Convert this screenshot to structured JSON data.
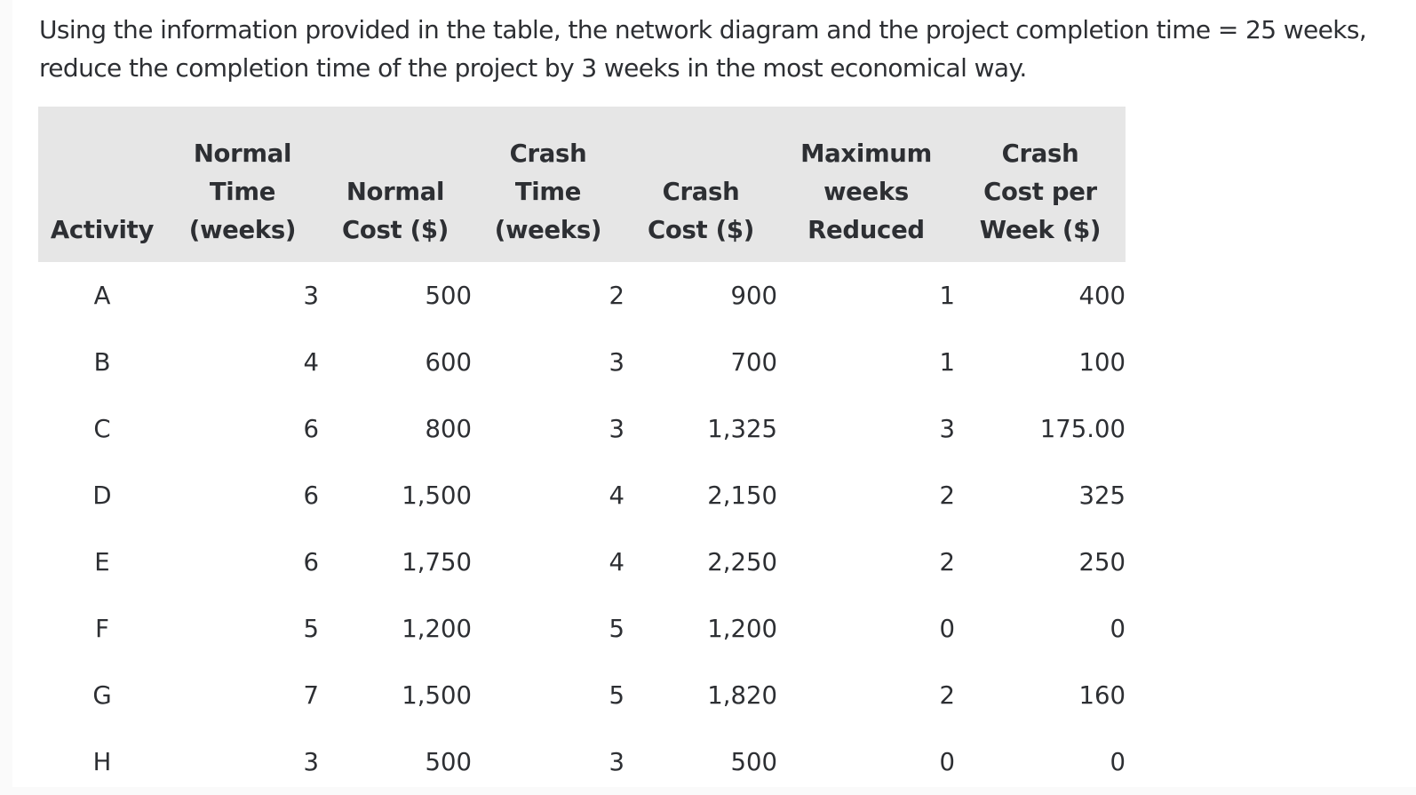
{
  "question": {
    "text": "Using the information provided in the table, the network diagram and the project completion time = 25 weeks, reduce the completion time of the project by 3 weeks in the most economical way."
  },
  "table": {
    "headers": [
      [
        "Activity"
      ],
      [
        "Normal",
        "Time",
        "(weeks)"
      ],
      [
        "Normal",
        "Cost ($)"
      ],
      [
        "Crash",
        "Time",
        "(weeks)"
      ],
      [
        "Crash",
        "Cost ($)"
      ],
      [
        "Maximum",
        "weeks",
        "Reduced"
      ],
      [
        "Crash",
        "Cost per",
        "Week ($)"
      ]
    ],
    "rows": [
      [
        "A",
        "3",
        "500",
        "2",
        "900",
        "1",
        "400"
      ],
      [
        "B",
        "4",
        "600",
        "3",
        "700",
        "1",
        "100"
      ],
      [
        "C",
        "6",
        "800",
        "3",
        "1,325",
        "3",
        "175.00"
      ],
      [
        "D",
        "6",
        "1,500",
        "4",
        "2,150",
        "2",
        "325"
      ],
      [
        "E",
        "6",
        "1,750",
        "4",
        "2,250",
        "2",
        "250"
      ],
      [
        "F",
        "5",
        "1,200",
        "5",
        "1,200",
        "0",
        "0"
      ],
      [
        "G",
        "7",
        "1,500",
        "5",
        "1,820",
        "2",
        "160"
      ],
      [
        "H",
        "3",
        "500",
        "3",
        "500",
        "0",
        "0"
      ]
    ]
  },
  "colors": {
    "header_background": "#e6e6e6",
    "text": "#2d2f33",
    "page_background": "#ffffff"
  }
}
